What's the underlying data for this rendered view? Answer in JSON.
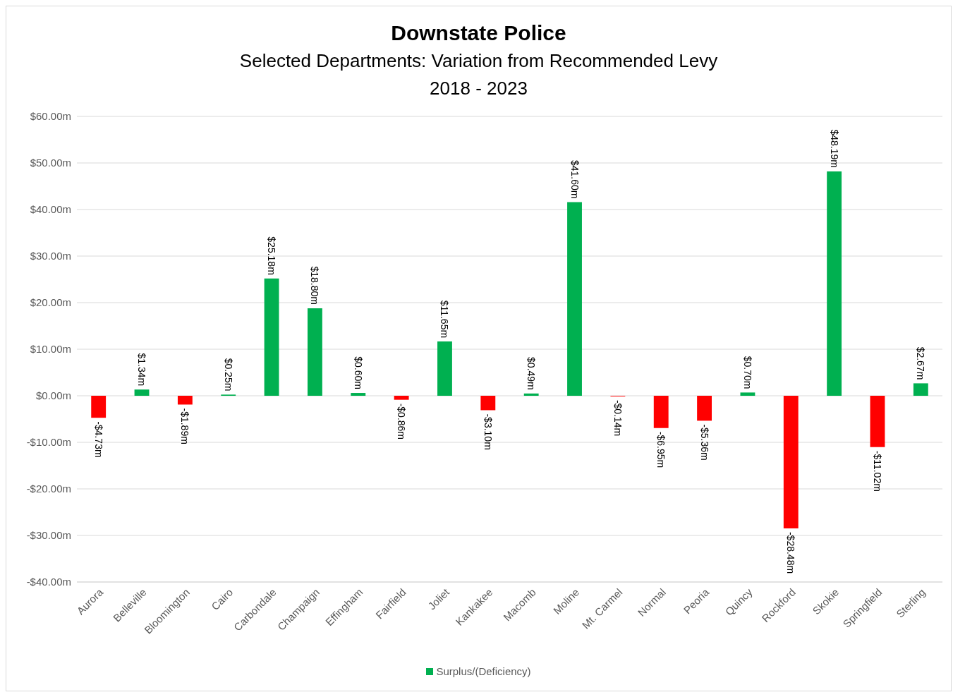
{
  "chart_data": {
    "type": "bar",
    "title": "Downstate Police",
    "subtitle": "Selected Departments: Variation from Recommended Levy\n2018 - 2023",
    "categories": [
      "Aurora",
      "Belleville",
      "Bloomington",
      "Cairo",
      "Carbondale",
      "Champaign",
      "Effingham",
      "Fairfield",
      "Joliet",
      "Kankakee",
      "Macomb",
      "Moline",
      "Mt. Carmel",
      "Normal",
      "Peoria",
      "Quincy",
      "Rockford",
      "Skokie",
      "Springfield",
      "Sterling"
    ],
    "series": [
      {
        "name": "Surplus/(Deficiency)",
        "color": "#00b050",
        "values": [
          -4.73,
          1.34,
          -1.89,
          0.25,
          25.18,
          18.8,
          0.6,
          -0.86,
          11.65,
          -3.1,
          0.49,
          41.6,
          -0.14,
          -6.95,
          -5.36,
          0.7,
          -28.48,
          48.19,
          -11.02,
          2.67
        ],
        "colors": [
          "#ff0000",
          "#00b050",
          "#ff0000",
          "#00b050",
          "#00b050",
          "#00b050",
          "#00b050",
          "#ff0000",
          "#00b050",
          "#ff0000",
          "#00b050",
          "#00b050",
          "#ff0000",
          "#ff0000",
          "#ff0000",
          "#00b050",
          "#ff0000",
          "#00b050",
          "#ff0000",
          "#00b050"
        ],
        "value_labels": [
          "-$4.73m",
          "$1.34m",
          "-$1.89m",
          "$0.25m",
          "$25.18m",
          "$18.80m",
          "$0.60m",
          "-$0.86m",
          "$11.65m",
          "-$3.10m",
          "$0.49m",
          "$41.60m",
          "-$0.14m",
          "-$6.95m",
          "-$5.36m",
          "$0.70m",
          "-$28.48m",
          "$48.19m",
          "-$11.02m",
          "$2.67m"
        ]
      }
    ],
    "ylim": [
      -40,
      60
    ],
    "yticks": [
      {
        "value": -40,
        "label": "-$40.00m"
      },
      {
        "value": -30,
        "label": "-$30.00m"
      },
      {
        "value": -20,
        "label": "-$20.00m"
      },
      {
        "value": -10,
        "label": "-$10.00m"
      },
      {
        "value": 0,
        "label": "$0.00m"
      },
      {
        "value": 10,
        "label": "$10.00m"
      },
      {
        "value": 20,
        "label": "$20.00m"
      },
      {
        "value": 30,
        "label": "$30.00m"
      },
      {
        "value": 40,
        "label": "$40.00m"
      },
      {
        "value": 50,
        "label": "$50.00m"
      },
      {
        "value": 60,
        "label": "$60.00m"
      }
    ],
    "grid": "y",
    "legend": "bottom"
  }
}
